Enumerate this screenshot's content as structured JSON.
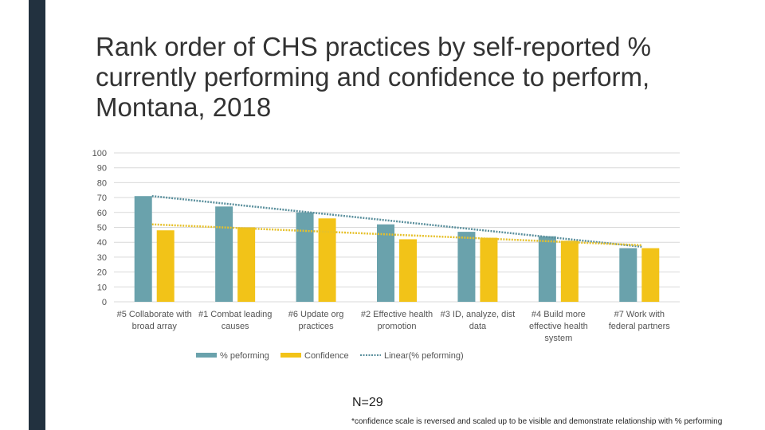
{
  "slide": {
    "title": "Rank order of CHS practices by self-reported % currently performing and confidence to perform, Montana, 2018",
    "n_note": "N=29",
    "footnote": "*confidence scale  is reversed and scaled up to be visible and demonstrate relationship with % performing"
  },
  "colors": {
    "sidebar": "#22313f",
    "performing": "#6aa2ac",
    "confidence": "#f2c318",
    "trend_performing": "#5a8f9c",
    "trend_confidence": "#e6c02a",
    "grid": "#d9d9d9"
  },
  "chart_data": {
    "type": "bar",
    "ylim": [
      0,
      100
    ],
    "yticks": [
      0,
      10,
      20,
      30,
      40,
      50,
      60,
      70,
      80,
      90,
      100
    ],
    "grid": true,
    "legend_position": "bottom",
    "categories": [
      [
        "#5 Collaborate with",
        "broad array"
      ],
      [
        "#1 Combat leading",
        "causes"
      ],
      [
        "#6 Update org",
        "practices"
      ],
      [
        "#2 Effective health",
        "promotion"
      ],
      [
        "#3 ID, analyze, dist",
        "data"
      ],
      [
        "#4 Build more",
        "effective health",
        "system"
      ],
      [
        "#7 Work with",
        "federal partners"
      ]
    ],
    "series": [
      {
        "name": "% peforming",
        "values": [
          71,
          64,
          60,
          52,
          47,
          44,
          36
        ]
      },
      {
        "name": "Confidence",
        "values": [
          48,
          50,
          56,
          42,
          43,
          41,
          36
        ]
      }
    ],
    "trendlines": [
      {
        "name": "Linear(% peforming)",
        "series_index": 0,
        "start": 71,
        "end": 37
      },
      {
        "name": "",
        "series_index": 1,
        "start": 52,
        "end": 38
      }
    ]
  }
}
